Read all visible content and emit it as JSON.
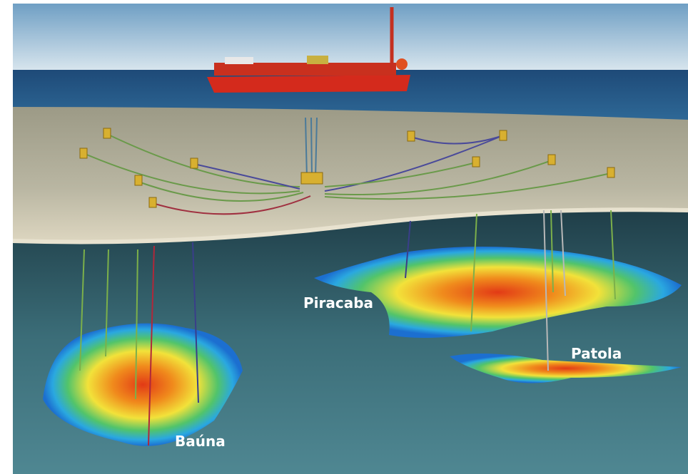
{
  "labels": [
    "Piracaba",
    "Patola",
    "Baúna"
  ]
}
